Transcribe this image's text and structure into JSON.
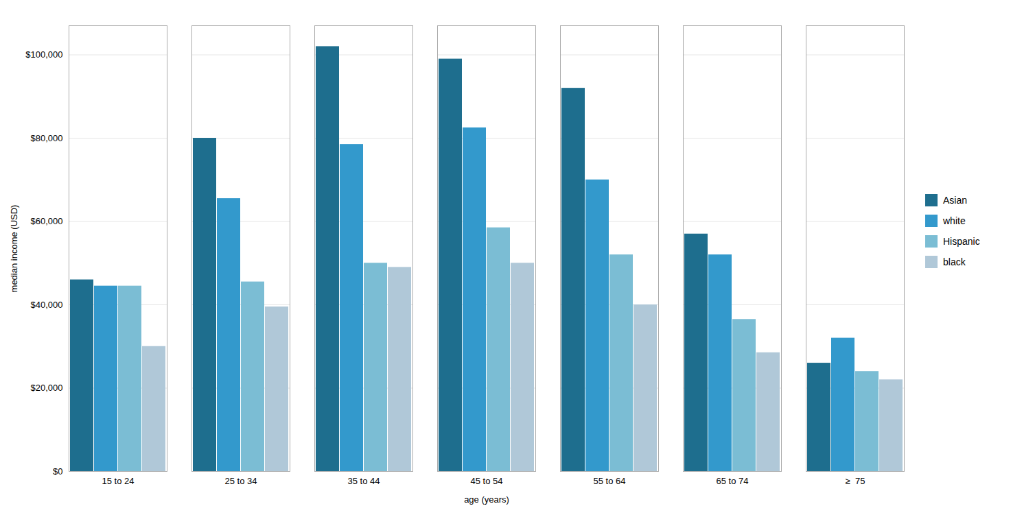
{
  "chart_data": {
    "type": "bar",
    "categories": [
      "15 to 24",
      "25 to 34",
      "35 to 44",
      "45 to 54",
      "55 to 64",
      "65 to 74",
      "≥  75"
    ],
    "series": [
      {
        "name": "Asian",
        "color": "#1e6e8e",
        "values": [
          46000,
          80000,
          102000,
          99000,
          92000,
          57000,
          26000
        ]
      },
      {
        "name": "white",
        "color": "#3399cc",
        "values": [
          44500,
          65500,
          78500,
          82500,
          70000,
          52000,
          32000
        ]
      },
      {
        "name": "Hispanic",
        "color": "#7bbdd4",
        "values": [
          44500,
          45500,
          50000,
          58500,
          52000,
          36500,
          24000
        ]
      },
      {
        "name": "black",
        "color": "#b0c8d8",
        "values": [
          30000,
          39500,
          49000,
          50000,
          40000,
          28500,
          22000
        ]
      }
    ],
    "xlabel": "age (years)",
    "ylabel": "median income (USD)",
    "ylim": [
      0,
      107000
    ],
    "yticks": [
      {
        "value": 0,
        "label": "$0"
      },
      {
        "value": 20000,
        "label": "$20,000"
      },
      {
        "value": 40000,
        "label": "$40,000"
      },
      {
        "value": 60000,
        "label": "$60,000"
      },
      {
        "value": 80000,
        "label": "$80,000"
      },
      {
        "value": 100000,
        "label": "$100,000"
      }
    ],
    "grid": true,
    "legend": "right"
  }
}
